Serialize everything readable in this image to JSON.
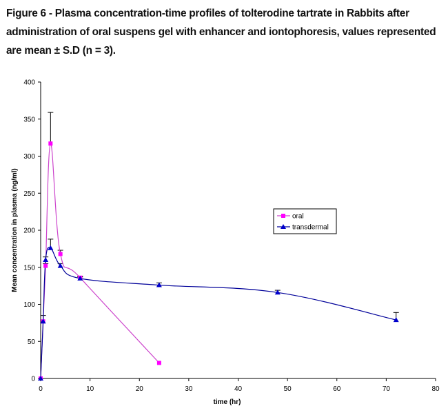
{
  "figure": {
    "caption": "Figure 6 - Plasma concentration-time profiles of tolterodine tartrate in Rabbits after\nadministration of oral suspens  gel with enhancer and iontophoresis, values represented\nare mean ± S.D (n = 3)."
  },
  "chart_data": {
    "type": "line",
    "title": "",
    "xlabel": "time (hr)",
    "ylabel": "Mean concentration in plasma (ng/ml)",
    "xlim": [
      0,
      80
    ],
    "ylim": [
      0,
      400
    ],
    "xticks": [
      0,
      10,
      20,
      30,
      40,
      50,
      60,
      70,
      80
    ],
    "yticks": [
      0,
      50,
      100,
      150,
      200,
      250,
      300,
      350,
      400
    ],
    "grid": false,
    "legend_position": "right",
    "series": [
      {
        "name": "oral",
        "color": "#ff00ff",
        "line_color": "#cc44cc",
        "marker": "square",
        "x": [
          0,
          0.5,
          1,
          2,
          4,
          8,
          24
        ],
        "y": [
          0,
          77,
          152,
          317,
          168,
          136,
          21
        ],
        "err": [
          0,
          0,
          3,
          42,
          5,
          2,
          0
        ]
      },
      {
        "name": "transdermal",
        "color": "#0000cc",
        "line_color": "#000099",
        "marker": "triangle",
        "x": [
          0,
          0.5,
          1,
          2,
          4,
          8,
          24,
          48,
          72
        ],
        "y": [
          0,
          77,
          160,
          176,
          152,
          135,
          126,
          116,
          79
        ],
        "err": [
          0,
          8,
          4,
          12,
          3,
          2,
          3,
          3,
          10
        ]
      }
    ]
  }
}
